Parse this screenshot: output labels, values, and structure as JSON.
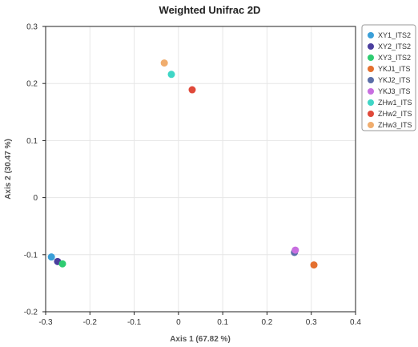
{
  "chart_data": {
    "type": "scatter",
    "title": "Weighted Unifrac 2D",
    "xlabel": "Axis 1 (67.82 %)",
    "ylabel": "Axis 2 (30.47 %)",
    "xlim": [
      -0.3,
      0.4
    ],
    "ylim": [
      -0.2,
      0.3
    ],
    "x_ticks": [
      "-0.3",
      "-0.2",
      "-0.1",
      "0",
      "0.1",
      "0.2",
      "0.3",
      "0.4"
    ],
    "y_ticks": [
      "-0.2",
      "-0.1",
      "0",
      "0.1",
      "0.2",
      "0.3"
    ],
    "grid": true,
    "legend_position": "top-right",
    "series": [
      {
        "name": "XY1_ITS2",
        "color": "#3a9fd8",
        "x": -0.287,
        "y": -0.104
      },
      {
        "name": "XY2_ITS2",
        "color": "#4b3e9e",
        "x": -0.273,
        "y": -0.112
      },
      {
        "name": "XY3_ITS2",
        "color": "#2ecc71",
        "x": -0.262,
        "y": -0.116
      },
      {
        "name": "YKJ1_ITS",
        "color": "#e4702f",
        "x": 0.306,
        "y": -0.118
      },
      {
        "name": "YKJ2_ITS",
        "color": "#5a6ea8",
        "x": 0.262,
        "y": -0.096
      },
      {
        "name": "YKJ3_ITS",
        "color": "#c86ee0",
        "x": 0.264,
        "y": -0.092
      },
      {
        "name": "ZHw1_ITS",
        "color": "#3fd6c6",
        "x": -0.016,
        "y": 0.216
      },
      {
        "name": "ZHw2_ITS",
        "color": "#e0493a",
        "x": 0.031,
        "y": 0.189
      },
      {
        "name": "ZHw3_ITS",
        "color": "#f0ad6e",
        "x": -0.032,
        "y": 0.236
      }
    ]
  }
}
